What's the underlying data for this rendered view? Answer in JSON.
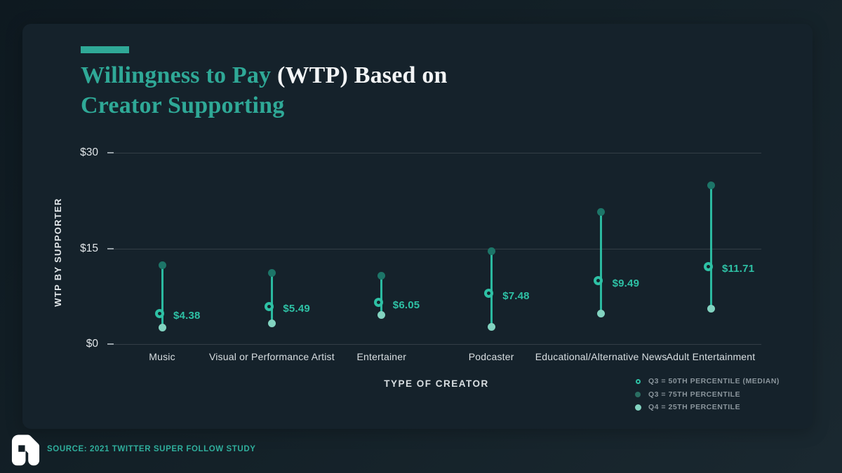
{
  "title": {
    "teal1": "Willingness to Pay ",
    "white1": "(WTP) Based on",
    "teal2": "Creator Supporting"
  },
  "source": {
    "text": "SOURCE: 2021 TWITTER SUPER FOLLOW STUDY"
  },
  "colors": {
    "background": "#111c23",
    "card": "#15222b",
    "accent_teal": "#2fa997",
    "title_white": "#f3f5f6",
    "value_teal": "#2ec1a5",
    "stem_teal": "#2bb9a0",
    "dot_75th": "#1d7568",
    "dot_25th": "#82d3c0",
    "gridline": "#333e46",
    "tick": "#97a1a7",
    "axis_text": "#e1e6e9",
    "category_text": "#d9dfe2",
    "legend_text": "#8a959c",
    "source_teal": "#2fae9c",
    "logo_white": "#ffffff"
  },
  "chart_data": {
    "type": "scatter",
    "subtype": "vertical-range-dumbbell",
    "title": "Willingness to Pay (WTP) Based on Creator Supporting",
    "xlabel": "TYPE OF CREATOR",
    "ylabel": "WTP BY SUPPORTER",
    "ylim": [
      0,
      30
    ],
    "grid": true,
    "legend_position": "bottom-right",
    "yticks": [
      {
        "value": 0,
        "label": "$0"
      },
      {
        "value": 15,
        "label": "$15"
      },
      {
        "value": 30,
        "label": "$30"
      }
    ],
    "categories": [
      "Music",
      "Visual or Performance Artist",
      "Entertainer",
      "Podcaster",
      "Educational/Alternative News",
      "Adult Entertainment"
    ],
    "series": [
      {
        "name": "Q3 = 50TH PERCENTILE (MEDIAN)",
        "marker": "ring",
        "values": [
          4.38,
          5.49,
          6.05,
          7.48,
          9.49,
          11.71
        ],
        "labels": [
          "$4.38",
          "$5.49",
          "$6.05",
          "$7.48",
          "$9.49",
          "$11.71"
        ]
      },
      {
        "name": "Q3 = 75TH PERCENTILE",
        "marker": "dot-dark",
        "values": [
          12.4,
          11.1,
          10.7,
          14.6,
          20.7,
          24.9
        ]
      },
      {
        "name": "Q4 = 25TH PERCENTILE",
        "marker": "dot-light",
        "values": [
          2.6,
          3.2,
          4.6,
          2.7,
          4.8,
          5.5
        ]
      }
    ]
  },
  "legend": [
    {
      "icon": "ring-icon",
      "label": "Q3 = 50TH PERCENTILE (MEDIAN)"
    },
    {
      "icon": "dot-dark-icon",
      "label": "Q3 = 75TH PERCENTILE"
    },
    {
      "icon": "dot-light-icon",
      "label": "Q4 = 25TH PERCENTILE"
    }
  ]
}
